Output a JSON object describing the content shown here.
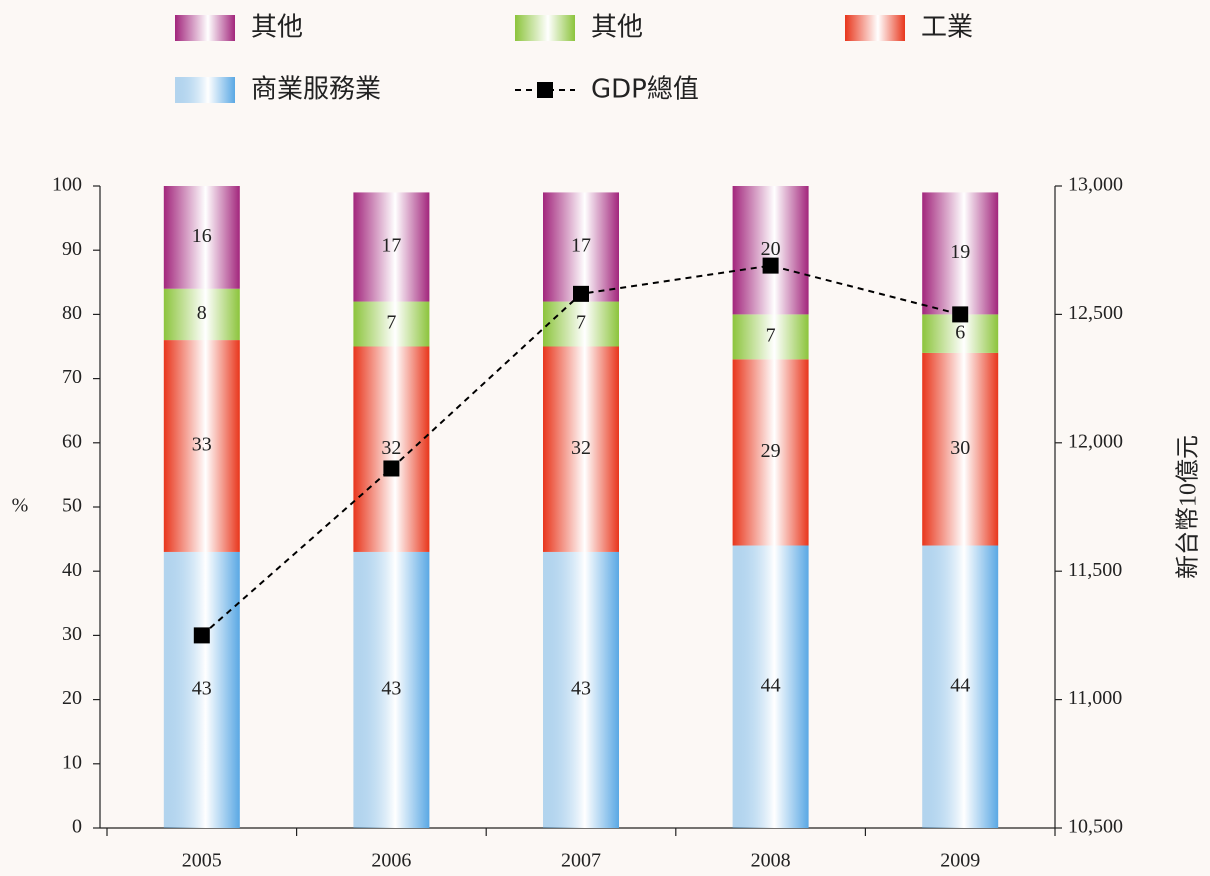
{
  "chart_data": {
    "type": "bar",
    "categories": [
      "2005",
      "2006",
      "2007",
      "2008",
      "2009"
    ],
    "stacked": true,
    "series": [
      {
        "name": "商業服務業",
        "color": "#5aa8e4",
        "values": [
          43,
          43,
          43,
          44,
          44
        ]
      },
      {
        "name": "工業",
        "color": "#e8361c",
        "values": [
          33,
          32,
          32,
          29,
          30
        ]
      },
      {
        "name": "其他",
        "color": "#8cc43c",
        "values": [
          8,
          7,
          7,
          7,
          6
        ]
      },
      {
        "name": "其他",
        "color": "#a2267c",
        "values": [
          16,
          17,
          17,
          20,
          19
        ]
      },
      {
        "name": "GDP總值",
        "color": "#000000",
        "type": "line",
        "axis": "y2",
        "values": [
          11250,
          11900,
          12580,
          12690,
          12500
        ]
      }
    ],
    "ylabel": "%",
    "y2label": "新台幣10億元",
    "ylim": [
      0,
      100
    ],
    "yticks": [
      0,
      10,
      20,
      30,
      40,
      50,
      60,
      70,
      80,
      90,
      100
    ],
    "y2lim": [
      10500,
      13000
    ],
    "y2ticks": [
      {
        "value": 10500,
        "label": "10,500"
      },
      {
        "value": 11000,
        "label": "11,000"
      },
      {
        "value": 11500,
        "label": "11,500"
      },
      {
        "value": 12000,
        "label": "12,000"
      },
      {
        "value": 12500,
        "label": "12,500"
      },
      {
        "value": 13000,
        "label": "13,000"
      }
    ],
    "legend": "top",
    "grid": false
  }
}
